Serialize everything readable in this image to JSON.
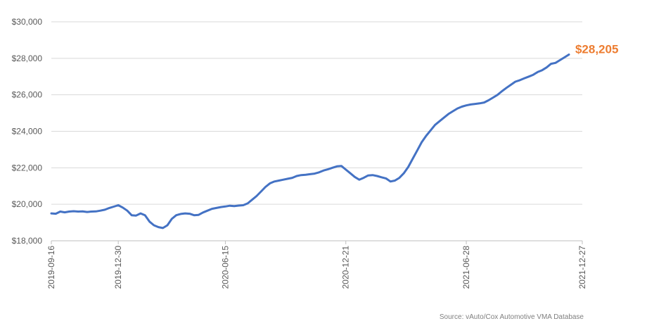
{
  "chart_data": {
    "type": "line",
    "title": "",
    "xlabel": "",
    "ylabel": "",
    "ylim": [
      18000,
      30000
    ],
    "y_ticks": [
      18000,
      20000,
      22000,
      24000,
      26000,
      28000,
      30000
    ],
    "y_tick_labels": [
      "$18,000",
      "$20,000",
      "$22,000",
      "$24,000",
      "$26,000",
      "$28,000",
      "$30,000"
    ],
    "x_tick_labels": [
      "2019-09-16",
      "2019-12-30",
      "2020-06-15",
      "2020-12-21",
      "2021-06-28",
      "2021-12-27"
    ],
    "x_start": "2019-09-16",
    "x_end": "2021-12-27",
    "grid": "horizontal",
    "legend": "none",
    "series": [
      {
        "color": "#4472c4",
        "points": [
          [
            "2019-09-16",
            19500
          ],
          [
            "2019-09-23",
            19480
          ],
          [
            "2019-09-30",
            19600
          ],
          [
            "2019-10-07",
            19560
          ],
          [
            "2019-10-14",
            19600
          ],
          [
            "2019-10-21",
            19620
          ],
          [
            "2019-10-28",
            19600
          ],
          [
            "2019-11-04",
            19610
          ],
          [
            "2019-11-11",
            19580
          ],
          [
            "2019-11-18",
            19600
          ],
          [
            "2019-11-25",
            19610
          ],
          [
            "2019-12-02",
            19650
          ],
          [
            "2019-12-09",
            19700
          ],
          [
            "2019-12-16",
            19800
          ],
          [
            "2019-12-23",
            19870
          ],
          [
            "2019-12-30",
            19950
          ],
          [
            "2020-01-06",
            19820
          ],
          [
            "2020-01-13",
            19650
          ],
          [
            "2020-01-20",
            19400
          ],
          [
            "2020-01-27",
            19380
          ],
          [
            "2020-02-03",
            19500
          ],
          [
            "2020-02-10",
            19400
          ],
          [
            "2020-02-17",
            19050
          ],
          [
            "2020-02-24",
            18850
          ],
          [
            "2020-03-02",
            18750
          ],
          [
            "2020-03-09",
            18700
          ],
          [
            "2020-03-16",
            18850
          ],
          [
            "2020-03-23",
            19200
          ],
          [
            "2020-03-30",
            19400
          ],
          [
            "2020-04-06",
            19470
          ],
          [
            "2020-04-13",
            19500
          ],
          [
            "2020-04-20",
            19480
          ],
          [
            "2020-04-27",
            19400
          ],
          [
            "2020-05-04",
            19420
          ],
          [
            "2020-05-11",
            19550
          ],
          [
            "2020-05-18",
            19650
          ],
          [
            "2020-05-25",
            19750
          ],
          [
            "2020-06-01",
            19800
          ],
          [
            "2020-06-08",
            19850
          ],
          [
            "2020-06-15",
            19880
          ],
          [
            "2020-06-22",
            19920
          ],
          [
            "2020-06-29",
            19900
          ],
          [
            "2020-07-06",
            19930
          ],
          [
            "2020-07-13",
            19950
          ],
          [
            "2020-07-20",
            20050
          ],
          [
            "2020-07-27",
            20250
          ],
          [
            "2020-08-03",
            20450
          ],
          [
            "2020-08-10",
            20700
          ],
          [
            "2020-08-17",
            20950
          ],
          [
            "2020-08-24",
            21150
          ],
          [
            "2020-08-31",
            21250
          ],
          [
            "2020-09-07",
            21300
          ],
          [
            "2020-09-14",
            21350
          ],
          [
            "2020-09-21",
            21400
          ],
          [
            "2020-09-28",
            21450
          ],
          [
            "2020-10-05",
            21550
          ],
          [
            "2020-10-12",
            21600
          ],
          [
            "2020-10-19",
            21620
          ],
          [
            "2020-10-26",
            21650
          ],
          [
            "2020-11-02",
            21680
          ],
          [
            "2020-11-09",
            21750
          ],
          [
            "2020-11-16",
            21850
          ],
          [
            "2020-11-23",
            21920
          ],
          [
            "2020-11-30",
            22000
          ],
          [
            "2020-12-07",
            22080
          ],
          [
            "2020-12-14",
            22100
          ],
          [
            "2020-12-21",
            21900
          ],
          [
            "2020-12-28",
            21700
          ],
          [
            "2021-01-04",
            21500
          ],
          [
            "2021-01-11",
            21350
          ],
          [
            "2021-01-18",
            21450
          ],
          [
            "2021-01-25",
            21580
          ],
          [
            "2021-02-01",
            21600
          ],
          [
            "2021-02-08",
            21550
          ],
          [
            "2021-02-15",
            21480
          ],
          [
            "2021-02-22",
            21420
          ],
          [
            "2021-03-01",
            21250
          ],
          [
            "2021-03-08",
            21300
          ],
          [
            "2021-03-15",
            21450
          ],
          [
            "2021-03-22",
            21700
          ],
          [
            "2021-03-29",
            22050
          ],
          [
            "2021-04-05",
            22500
          ],
          [
            "2021-04-12",
            22950
          ],
          [
            "2021-04-19",
            23400
          ],
          [
            "2021-04-26",
            23750
          ],
          [
            "2021-05-03",
            24050
          ],
          [
            "2021-05-10",
            24350
          ],
          [
            "2021-05-17",
            24550
          ],
          [
            "2021-05-24",
            24750
          ],
          [
            "2021-05-31",
            24950
          ],
          [
            "2021-06-07",
            25100
          ],
          [
            "2021-06-14",
            25250
          ],
          [
            "2021-06-21",
            25350
          ],
          [
            "2021-06-28",
            25420
          ],
          [
            "2021-07-05",
            25470
          ],
          [
            "2021-07-12",
            25500
          ],
          [
            "2021-07-19",
            25530
          ],
          [
            "2021-07-26",
            25580
          ],
          [
            "2021-08-02",
            25700
          ],
          [
            "2021-08-09",
            25850
          ],
          [
            "2021-08-16",
            26000
          ],
          [
            "2021-08-23",
            26200
          ],
          [
            "2021-08-30",
            26380
          ],
          [
            "2021-09-06",
            26550
          ],
          [
            "2021-09-13",
            26720
          ],
          [
            "2021-09-20",
            26800
          ],
          [
            "2021-09-27",
            26900
          ],
          [
            "2021-10-04",
            27000
          ],
          [
            "2021-10-11",
            27100
          ],
          [
            "2021-10-18",
            27250
          ],
          [
            "2021-10-25",
            27350
          ],
          [
            "2021-11-01",
            27500
          ],
          [
            "2021-11-08",
            27700
          ],
          [
            "2021-11-15",
            27750
          ],
          [
            "2021-11-22",
            27900
          ],
          [
            "2021-11-29",
            28050
          ],
          [
            "2021-12-06",
            28205
          ]
        ]
      }
    ],
    "annotations": [
      {
        "text": "$28,205",
        "color": "#ed7d31",
        "anchor": "last-point"
      }
    ],
    "source": "Source: vAuto/Cox Automotive VMA Database"
  }
}
